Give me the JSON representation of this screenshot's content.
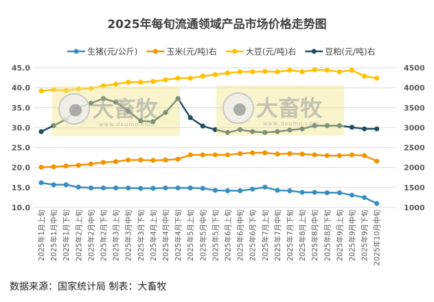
{
  "chart_data": {
    "type": "line",
    "title": "2025年每旬流通领域产品市场价格走势图",
    "categories": [
      "2025年1月上旬",
      "2025年1月中旬",
      "2025年1月下旬",
      "2025年2月上旬",
      "2025年2月中旬",
      "2025年2月下旬",
      "2025年3月上旬",
      "2025年3月中旬",
      "2025年3月下旬",
      "2025年4月上旬",
      "2025年4月中旬",
      "2025年4月下旬",
      "2025年5月上旬",
      "2025年5月中旬",
      "2025年5月下旬",
      "2025年6月上旬",
      "2025年6月中旬",
      "2025年6月下旬",
      "2025年7月上旬",
      "2025年7月中旬",
      "2025年7月下旬",
      "2025年8月上旬",
      "2025年8月中旬",
      "2025年8月下旬",
      "2025年9月上旬",
      "2025年9月中旬",
      "2025年9月下旬",
      "2025年10月中旬"
    ],
    "y_left": {
      "ylim": [
        10,
        45
      ],
      "ticks": [
        "10.0",
        "15.0",
        "20.0",
        "25.0",
        "30.0",
        "35.0",
        "40.0",
        "45.0"
      ]
    },
    "y_right": {
      "ylim": [
        1000,
        4500
      ],
      "ticks": [
        "1000",
        "1500",
        "2000",
        "2500",
        "3000",
        "3500",
        "4000",
        "4500"
      ]
    },
    "grid": true,
    "legend_position": "top",
    "series": [
      {
        "name": "生猪(元/公斤)",
        "axis": "left",
        "color": "#3A8EBF",
        "values": [
          16.2,
          15.7,
          15.7,
          15.1,
          14.9,
          14.9,
          14.9,
          14.9,
          14.8,
          14.8,
          14.9,
          14.9,
          14.9,
          14.8,
          14.3,
          14.2,
          14.2,
          14.6,
          15.1,
          14.3,
          14.2,
          13.8,
          13.8,
          13.7,
          13.7,
          13.1,
          12.5,
          11.0
        ]
      },
      {
        "name": "玉米(元/吨)右",
        "axis": "right",
        "color": "#F39200",
        "values": [
          2010,
          2020,
          2040,
          2060,
          2090,
          2130,
          2150,
          2190,
          2190,
          2180,
          2190,
          2210,
          2320,
          2320,
          2320,
          2320,
          2350,
          2370,
          2370,
          2340,
          2350,
          2340,
          2320,
          2300,
          2300,
          2320,
          2300,
          2160
        ]
      },
      {
        "name": "大豆(元/吨)右",
        "axis": "right",
        "color": "#FFC000",
        "values": [
          3920,
          3950,
          3930,
          3970,
          3980,
          4050,
          4090,
          4140,
          4140,
          4160,
          4200,
          4240,
          4240,
          4290,
          4330,
          4370,
          4400,
          4400,
          4410,
          4400,
          4440,
          4400,
          4450,
          4440,
          4400,
          4440,
          4290,
          4240
        ]
      },
      {
        "name": "豆粕(元/吨)右",
        "axis": "right",
        "color": "#1F4E64",
        "values": [
          2900,
          3050,
          3210,
          3500,
          3610,
          3730,
          3640,
          3420,
          3170,
          3150,
          3380,
          3730,
          3250,
          3040,
          2950,
          2880,
          2950,
          2900,
          2880,
          2900,
          2940,
          2970,
          3050,
          3050,
          3050,
          3010,
          2970,
          2970
        ]
      }
    ]
  },
  "watermark": {
    "brand": "大畜牧",
    "url": "www.dxumu.com"
  },
  "source_text": "数据来源：国家统计局  制表：大畜牧"
}
